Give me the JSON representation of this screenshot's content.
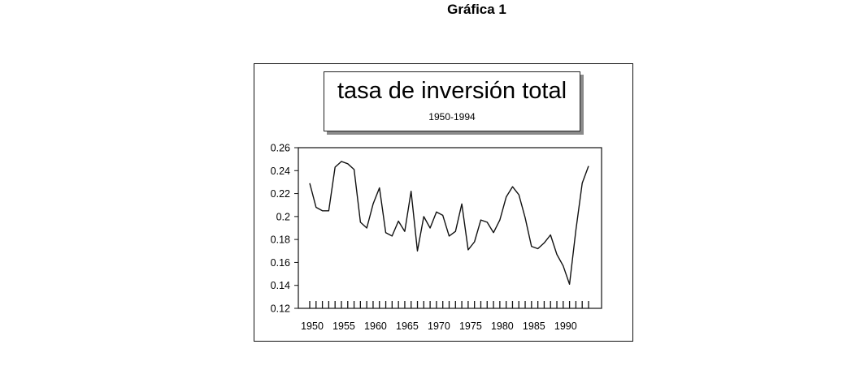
{
  "page_title": "Gráfica 1",
  "chart_data": {
    "type": "line",
    "title": "tasa de inversión total",
    "subtitle": "1950-1994",
    "xlabel": "",
    "ylabel": "",
    "ylim": [
      0.12,
      0.26
    ],
    "yticks": [
      "0.26",
      "0.24",
      "0.22",
      "0.2",
      "0.18",
      "0.16",
      "0.14",
      "0.12"
    ],
    "xticks": [
      "1950",
      "1955",
      "1960",
      "1965",
      "1970",
      "1975",
      "1980",
      "1985",
      "1990"
    ],
    "grid": false,
    "legend": "none",
    "line_color": "#111111",
    "x": [
      1950,
      1951,
      1952,
      1953,
      1954,
      1955,
      1956,
      1957,
      1958,
      1959,
      1960,
      1961,
      1962,
      1963,
      1964,
      1965,
      1966,
      1967,
      1968,
      1969,
      1970,
      1971,
      1972,
      1973,
      1974,
      1975,
      1976,
      1977,
      1978,
      1979,
      1980,
      1981,
      1982,
      1983,
      1984,
      1985,
      1986,
      1987,
      1988,
      1989,
      1990,
      1991,
      1992,
      1993,
      1994
    ],
    "series": [
      {
        "values": [
          0.229,
          0.208,
          0.205,
          0.205,
          0.243,
          0.248,
          0.246,
          0.241,
          0.195,
          0.19,
          0.211,
          0.225,
          0.186,
          0.183,
          0.196,
          0.187,
          0.222,
          0.17,
          0.2,
          0.19,
          0.204,
          0.201,
          0.183,
          0.187,
          0.211,
          0.171,
          0.178,
          0.197,
          0.195,
          0.186,
          0.197,
          0.217,
          0.226,
          0.219,
          0.199,
          0.174,
          0.172,
          0.177,
          0.184,
          0.167,
          0.157,
          0.141,
          0.188,
          0.229,
          0.244
        ]
      }
    ]
  }
}
